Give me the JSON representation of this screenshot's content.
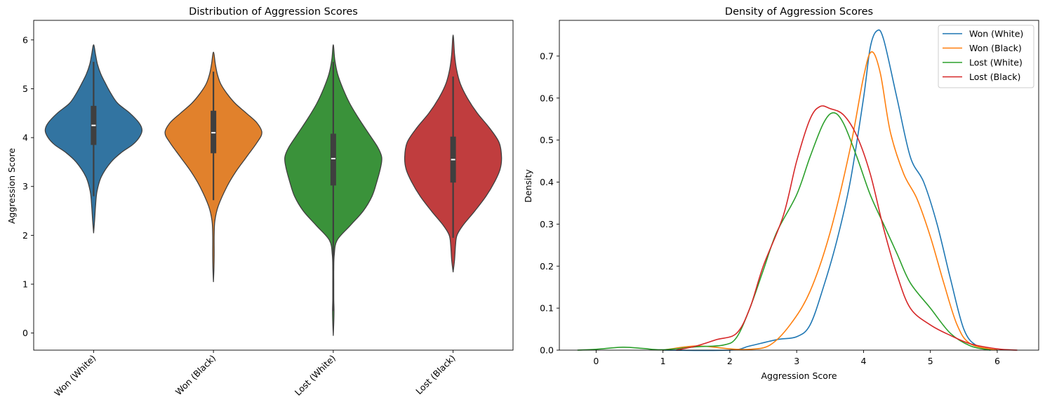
{
  "chart_data": [
    {
      "type": "violin",
      "title": "Distribution of Aggression Scores",
      "xlabel": "",
      "ylabel": "Aggression Score",
      "ylim": [
        -0.35,
        6.4
      ],
      "yticks": [
        "0",
        "1",
        "2",
        "3",
        "4",
        "5",
        "6"
      ],
      "categories": [
        "Won (White)",
        "Won (Black)",
        "Lost (White)",
        "Lost (Black)"
      ],
      "colors": [
        "#3274a1",
        "#e1812c",
        "#3a923a",
        "#c03d3e"
      ],
      "violins": [
        {
          "name": "Won (White)",
          "min": 2.05,
          "max": 5.9,
          "q1": 3.85,
          "median": 4.25,
          "q3": 4.65,
          "whisker_low": 2.8,
          "whisker_high": 5.55,
          "profile": [
            [
              2.05,
              0
            ],
            [
              2.3,
              0.02
            ],
            [
              2.6,
              0.04
            ],
            [
              2.9,
              0.07
            ],
            [
              3.2,
              0.16
            ],
            [
              3.5,
              0.36
            ],
            [
              3.7,
              0.58
            ],
            [
              3.85,
              0.8
            ],
            [
              4.0,
              0.94
            ],
            [
              4.15,
              1.0
            ],
            [
              4.3,
              0.94
            ],
            [
              4.5,
              0.75
            ],
            [
              4.7,
              0.5
            ],
            [
              4.9,
              0.36
            ],
            [
              5.1,
              0.25
            ],
            [
              5.3,
              0.15
            ],
            [
              5.5,
              0.08
            ],
            [
              5.7,
              0.04
            ],
            [
              5.9,
              0
            ]
          ]
        },
        {
          "name": "Won (Black)",
          "min": 1.05,
          "max": 5.75,
          "q1": 3.68,
          "median": 4.1,
          "q3": 4.55,
          "whisker_low": 2.72,
          "whisker_high": 5.35,
          "profile": [
            [
              1.05,
              0
            ],
            [
              1.3,
              0.01
            ],
            [
              1.6,
              0.015
            ],
            [
              2.0,
              0.015
            ],
            [
              2.3,
              0.03
            ],
            [
              2.6,
              0.1
            ],
            [
              3.0,
              0.28
            ],
            [
              3.3,
              0.46
            ],
            [
              3.6,
              0.68
            ],
            [
              3.9,
              0.9
            ],
            [
              4.1,
              1.0
            ],
            [
              4.3,
              0.9
            ],
            [
              4.5,
              0.68
            ],
            [
              4.7,
              0.45
            ],
            [
              4.9,
              0.28
            ],
            [
              5.1,
              0.15
            ],
            [
              5.3,
              0.08
            ],
            [
              5.5,
              0.04
            ],
            [
              5.75,
              0
            ]
          ]
        },
        {
          "name": "Lost (White)",
          "min": -0.05,
          "max": 5.9,
          "q1": 3.02,
          "median": 3.57,
          "q3": 4.08,
          "whisker_low": 0.45,
          "whisker_high": 5.55,
          "profile": [
            [
              -0.05,
              0
            ],
            [
              0.2,
              0.01
            ],
            [
              0.45,
              0.015
            ],
            [
              0.7,
              0.01
            ],
            [
              1.0,
              0.01
            ],
            [
              1.3,
              0.01
            ],
            [
              1.6,
              0.02
            ],
            [
              1.9,
              0.08
            ],
            [
              2.2,
              0.35
            ],
            [
              2.5,
              0.62
            ],
            [
              2.8,
              0.8
            ],
            [
              3.1,
              0.9
            ],
            [
              3.4,
              0.98
            ],
            [
              3.6,
              1.0
            ],
            [
              3.8,
              0.92
            ],
            [
              4.1,
              0.72
            ],
            [
              4.4,
              0.52
            ],
            [
              4.7,
              0.34
            ],
            [
              5.0,
              0.2
            ],
            [
              5.3,
              0.09
            ],
            [
              5.6,
              0.03
            ],
            [
              5.9,
              0
            ]
          ]
        },
        {
          "name": "Lost (Black)",
          "min": 1.25,
          "max": 6.1,
          "q1": 3.08,
          "median": 3.55,
          "q3": 4.02,
          "whisker_low": 1.95,
          "whisker_high": 5.25,
          "profile": [
            [
              1.25,
              0
            ],
            [
              1.5,
              0.03
            ],
            [
              1.8,
              0.05
            ],
            [
              2.0,
              0.08
            ],
            [
              2.2,
              0.2
            ],
            [
              2.5,
              0.45
            ],
            [
              2.8,
              0.68
            ],
            [
              3.1,
              0.86
            ],
            [
              3.35,
              0.97
            ],
            [
              3.6,
              1.0
            ],
            [
              3.9,
              0.95
            ],
            [
              4.2,
              0.75
            ],
            [
              4.5,
              0.5
            ],
            [
              4.8,
              0.3
            ],
            [
              5.1,
              0.15
            ],
            [
              5.4,
              0.07
            ],
            [
              5.7,
              0.03
            ],
            [
              6.1,
              0
            ]
          ]
        }
      ]
    },
    {
      "type": "line",
      "title": "Density of Aggression Scores",
      "xlabel": "Aggression Score",
      "ylabel": "Density",
      "xlim": [
        -0.55,
        6.62
      ],
      "ylim": [
        0,
        0.785
      ],
      "xticks": [
        "0",
        "1",
        "2",
        "3",
        "4",
        "5",
        "6"
      ],
      "yticks": [
        "0.0",
        "0.1",
        "0.2",
        "0.3",
        "0.4",
        "0.5",
        "0.6",
        "0.7"
      ],
      "legend_position": "top-right",
      "series": [
        {
          "name": "Won (White)",
          "color": "#1f77b4",
          "points": [
            [
              1.0,
              0
            ],
            [
              2.0,
              0
            ],
            [
              2.3,
              0.01
            ],
            [
              2.7,
              0.025
            ],
            [
              3.0,
              0.032
            ],
            [
              3.2,
              0.06
            ],
            [
              3.4,
              0.15
            ],
            [
              3.6,
              0.26
            ],
            [
              3.8,
              0.4
            ],
            [
              4.0,
              0.6
            ],
            [
              4.1,
              0.72
            ],
            [
              4.2,
              0.76
            ],
            [
              4.3,
              0.74
            ],
            [
              4.5,
              0.6
            ],
            [
              4.7,
              0.46
            ],
            [
              4.9,
              0.4
            ],
            [
              5.1,
              0.3
            ],
            [
              5.3,
              0.17
            ],
            [
              5.5,
              0.05
            ],
            [
              5.7,
              0.01
            ],
            [
              6.0,
              0
            ]
          ]
        },
        {
          "name": "Won (Black)",
          "color": "#ff7f0e",
          "points": [
            [
              1.0,
              0
            ],
            [
              1.5,
              0.01
            ],
            [
              2.0,
              0.003
            ],
            [
              2.3,
              0.002
            ],
            [
              2.6,
              0.012
            ],
            [
              2.9,
              0.06
            ],
            [
              3.2,
              0.14
            ],
            [
              3.5,
              0.28
            ],
            [
              3.8,
              0.48
            ],
            [
              4.0,
              0.65
            ],
            [
              4.12,
              0.71
            ],
            [
              4.25,
              0.66
            ],
            [
              4.4,
              0.52
            ],
            [
              4.6,
              0.42
            ],
            [
              4.8,
              0.36
            ],
            [
              5.0,
              0.27
            ],
            [
              5.2,
              0.16
            ],
            [
              5.4,
              0.06
            ],
            [
              5.6,
              0.015
            ],
            [
              6.0,
              0
            ]
          ]
        },
        {
          "name": "Lost (White)",
          "color": "#2ca02c",
          "points": [
            [
              -0.28,
              0
            ],
            [
              0.0,
              0.002
            ],
            [
              0.4,
              0.007
            ],
            [
              0.7,
              0.004
            ],
            [
              1.0,
              0.001
            ],
            [
              1.5,
              0.008
            ],
            [
              1.9,
              0.012
            ],
            [
              2.1,
              0.03
            ],
            [
              2.3,
              0.1
            ],
            [
              2.5,
              0.19
            ],
            [
              2.7,
              0.28
            ],
            [
              3.0,
              0.37
            ],
            [
              3.2,
              0.46
            ],
            [
              3.4,
              0.54
            ],
            [
              3.55,
              0.565
            ],
            [
              3.7,
              0.54
            ],
            [
              3.9,
              0.46
            ],
            [
              4.1,
              0.37
            ],
            [
              4.3,
              0.3
            ],
            [
              4.5,
              0.23
            ],
            [
              4.7,
              0.16
            ],
            [
              5.0,
              0.1
            ],
            [
              5.3,
              0.04
            ],
            [
              5.6,
              0.01
            ],
            [
              5.9,
              0
            ]
          ]
        },
        {
          "name": "Lost (Black)",
          "color": "#d62728",
          "points": [
            [
              1.2,
              0
            ],
            [
              1.5,
              0.01
            ],
            [
              1.8,
              0.025
            ],
            [
              2.1,
              0.04
            ],
            [
              2.3,
              0.1
            ],
            [
              2.5,
              0.2
            ],
            [
              2.8,
              0.32
            ],
            [
              3.0,
              0.45
            ],
            [
              3.2,
              0.55
            ],
            [
              3.35,
              0.58
            ],
            [
              3.5,
              0.575
            ],
            [
              3.7,
              0.56
            ],
            [
              3.9,
              0.51
            ],
            [
              4.1,
              0.42
            ],
            [
              4.3,
              0.29
            ],
            [
              4.5,
              0.18
            ],
            [
              4.7,
              0.1
            ],
            [
              5.0,
              0.06
            ],
            [
              5.3,
              0.035
            ],
            [
              5.6,
              0.015
            ],
            [
              6.0,
              0.003
            ],
            [
              6.3,
              0
            ]
          ]
        }
      ]
    }
  ]
}
